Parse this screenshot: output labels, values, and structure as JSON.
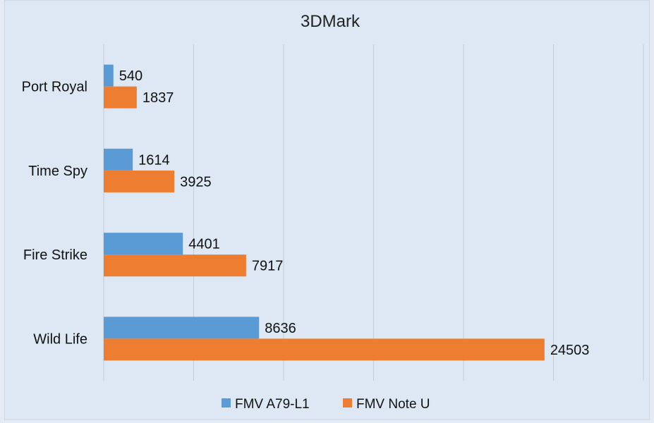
{
  "chart_data": {
    "type": "bar",
    "orientation": "horizontal",
    "title": "3DMark",
    "categories": [
      "Port Royal",
      "Time Spy",
      "Fire Strike",
      "Wild Life"
    ],
    "series": [
      {
        "name": "FMV A79-L1",
        "color": "#5b9bd5",
        "values": [
          540,
          1614,
          4401,
          8636
        ]
      },
      {
        "name": "FMV Note U",
        "color": "#ed7d31",
        "values": [
          1837,
          3925,
          7917,
          24503
        ]
      }
    ],
    "xlim": [
      0,
      30000
    ],
    "grid_step": 5000,
    "grid": true,
    "x_tick_labels_shown": false,
    "legend": "bottom",
    "data_labels": true
  }
}
